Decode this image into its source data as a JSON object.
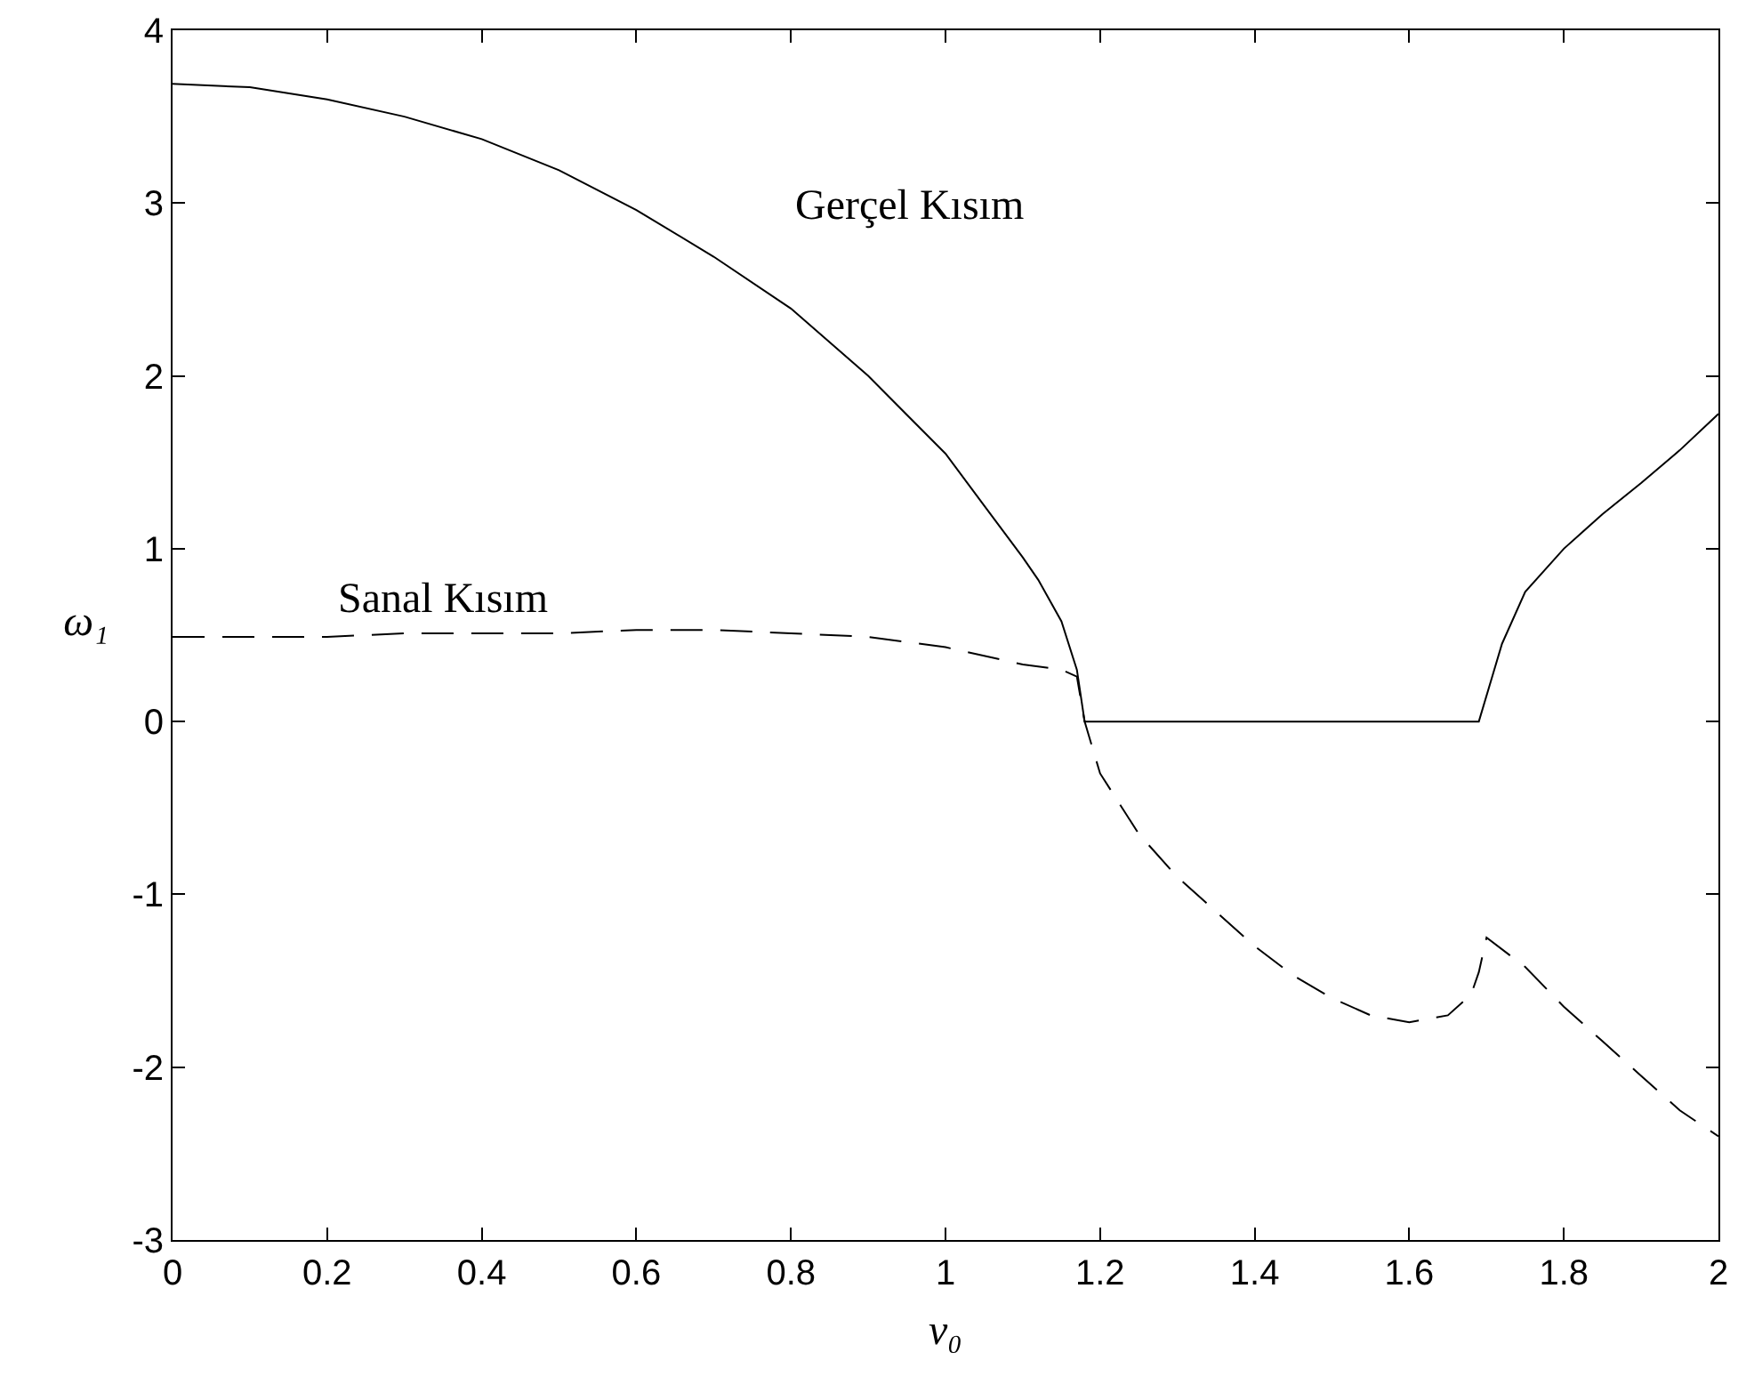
{
  "chart_data": {
    "type": "line",
    "xlabel": "v₀",
    "ylabel": "ω₁",
    "xlim": [
      0,
      2
    ],
    "xticks": [
      0,
      0.2,
      0.4,
      0.6,
      0.8,
      1,
      1.2,
      1.4,
      1.6,
      1.8,
      2
    ],
    "ylim": [
      -3,
      4
    ],
    "yticks": [
      -3,
      -2,
      -1,
      0,
      1,
      2,
      3,
      4
    ],
    "grid": false,
    "legend": false,
    "marker": "none",
    "series": [
      {
        "name": "Gerçel Kısım",
        "color": "#000000",
        "line_style": "solid",
        "x": [
          0,
          0.1,
          0.2,
          0.3,
          0.4,
          0.5,
          0.6,
          0.7,
          0.8,
          0.9,
          1.0,
          1.05,
          1.1,
          1.12,
          1.15,
          1.17,
          1.18,
          1.69,
          1.72,
          1.75,
          1.8,
          1.85,
          1.9,
          1.95,
          2.0
        ],
        "values": [
          3.69,
          3.67,
          3.6,
          3.5,
          3.37,
          3.19,
          2.96,
          2.69,
          2.39,
          2.0,
          1.55,
          1.25,
          0.95,
          0.82,
          0.58,
          0.3,
          0,
          0,
          0.45,
          0.75,
          1.0,
          1.2,
          1.38,
          1.57,
          1.78
        ]
      },
      {
        "name": "Sanal Kısım",
        "color": "#000000",
        "line_style": "dashed",
        "x": [
          0,
          0.2,
          0.3,
          0.5,
          0.6,
          0.7,
          0.8,
          0.9,
          1.0,
          1.1,
          1.15,
          1.17,
          1.18,
          1.2,
          1.25,
          1.3,
          1.35,
          1.4,
          1.45,
          1.5,
          1.55,
          1.6,
          1.65,
          1.68,
          1.69,
          1.7,
          1.75,
          1.8,
          1.85,
          1.9,
          1.95,
          2.0
        ],
        "values": [
          0.49,
          0.49,
          0.51,
          0.51,
          0.53,
          0.53,
          0.51,
          0.49,
          0.43,
          0.33,
          0.3,
          0.26,
          0,
          -0.3,
          -0.65,
          -0.9,
          -1.1,
          -1.3,
          -1.47,
          -1.6,
          -1.7,
          -1.74,
          -1.7,
          -1.58,
          -1.45,
          -1.25,
          -1.42,
          -1.65,
          -1.85,
          -2.05,
          -2.25,
          -2.4
        ]
      }
    ]
  }
}
